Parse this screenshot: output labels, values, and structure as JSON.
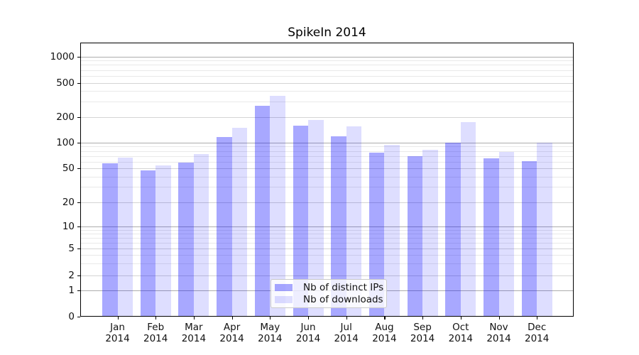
{
  "title": "SpikeIn 2014",
  "chart_data": {
    "type": "bar",
    "title": "SpikeIn 2014",
    "categories": [
      "Jan 2014",
      "Feb 2014",
      "Mar 2014",
      "Apr 2014",
      "May 2014",
      "Jun 2014",
      "Jul 2014",
      "Aug 2014",
      "Sep 2014",
      "Oct 2014",
      "Nov 2014",
      "Dec 2014"
    ],
    "series": [
      {
        "name": "Nb of distinct IPs",
        "color": "rgba(0,0,255,0.34)",
        "values": [
          57,
          47,
          58,
          116,
          270,
          157,
          118,
          77,
          69,
          100,
          66,
          61
        ]
      },
      {
        "name": "Nb of downloads",
        "color": "rgba(0,0,255,0.13)",
        "values": [
          67,
          54,
          73,
          148,
          354,
          185,
          156,
          95,
          83,
          172,
          78,
          100
        ]
      }
    ],
    "xlabel": "",
    "ylabel": "",
    "yticks": [
      0,
      1,
      2,
      5,
      10,
      20,
      50,
      100,
      200,
      500,
      1000
    ],
    "yscale": "log with 1-2-5 ticks, linear segment between 0 and 1",
    "ylim": [
      0,
      1400
    ],
    "grid": true,
    "gridline_colors": {
      "decade": "#adadad",
      "major": "#d4d4d4",
      "minor": "#e9e9e9"
    },
    "legend_position": "lower center"
  }
}
